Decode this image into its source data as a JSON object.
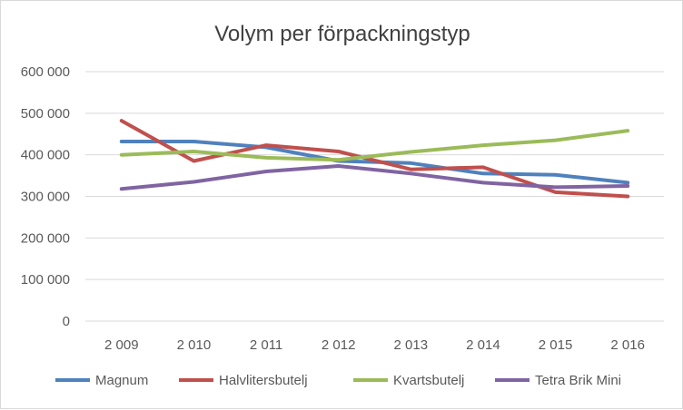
{
  "chart_data": {
    "type": "line",
    "title": "Volym per förpackningstyp",
    "xlabel": "",
    "ylabel": "",
    "categories": [
      "2 009",
      "2 010",
      "2 011",
      "2 012",
      "2 013",
      "2 014",
      "2 015",
      "2 016"
    ],
    "ylim": [
      0,
      600000
    ],
    "yticks": [
      0,
      100000,
      200000,
      300000,
      400000,
      500000,
      600000
    ],
    "ytick_labels": [
      "0",
      "100 000",
      "200 000",
      "300 000",
      "400 000",
      "500 000",
      "600 000"
    ],
    "grid": true,
    "legend_position": "bottom",
    "series": [
      {
        "name": "Magnum",
        "color": "#4f81bd",
        "values": [
          432000,
          432000,
          418000,
          385000,
          380000,
          355000,
          352000,
          333000
        ]
      },
      {
        "name": "Halvlitersbutelj",
        "color": "#c0504d",
        "values": [
          482000,
          385000,
          423000,
          408000,
          365000,
          370000,
          310000,
          300000
        ]
      },
      {
        "name": "Kvartsbutelj",
        "color": "#9bbb59",
        "values": [
          400000,
          408000,
          393000,
          388000,
          407000,
          423000,
          435000,
          458000
        ]
      },
      {
        "name": "Tetra Brik Mini",
        "color": "#8064a2",
        "values": [
          318000,
          335000,
          360000,
          373000,
          355000,
          333000,
          322000,
          325000
        ]
      }
    ]
  }
}
